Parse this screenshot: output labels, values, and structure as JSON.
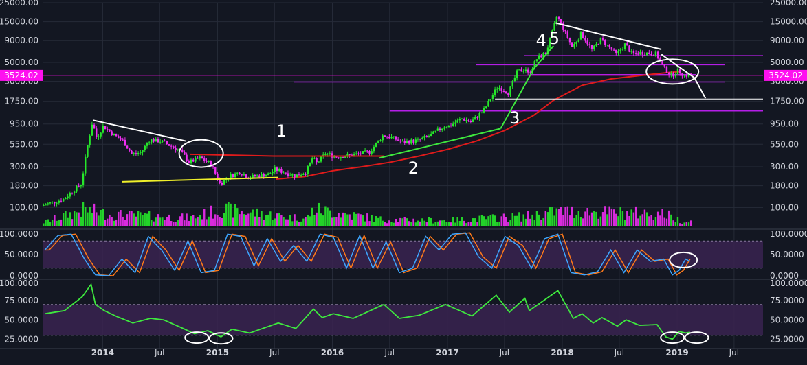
{
  "theme": {
    "background": "#131722",
    "grid": "#262b38",
    "axis_text": "#d1d4dc",
    "up_color": "#26e82a",
    "down_color": "#f02ef2",
    "price_label_bg": "#ff10f0",
    "osc_band": "#3a2350",
    "k_color": "#3ea6ff",
    "d_color": "#ff7a1a",
    "rsi_color": "#3ee83e",
    "ma_color": "#e01b1b",
    "support_color": "#b41ee6",
    "annotation_color": "#ffffff",
    "trend_green": "#3ee83e",
    "trend_yellow": "#f0f02a"
  },
  "chart_data": [
    {
      "type": "candlestick",
      "panel": "price",
      "scale": "log",
      "ylim": [
        60,
        25000
      ],
      "x_range": [
        "2013-06-24",
        "2019-10-01"
      ],
      "x_ticks": [
        {
          "date": "2014-01-01",
          "label": "2014"
        },
        {
          "date": "2014-07-01",
          "label": "Jul"
        },
        {
          "date": "2015-01-01",
          "label": "2015"
        },
        {
          "date": "2015-07-01",
          "label": "Jul"
        },
        {
          "date": "2016-01-01",
          "label": "2016"
        },
        {
          "date": "2016-07-01",
          "label": "Jul"
        },
        {
          "date": "2017-01-01",
          "label": "2017"
        },
        {
          "date": "2017-07-01",
          "label": "Jul"
        },
        {
          "date": "2018-01-01",
          "label": "2018"
        },
        {
          "date": "2018-07-01",
          "label": "Jul"
        },
        {
          "date": "2019-01-01",
          "label": "2019"
        },
        {
          "date": "2019-07-01",
          "label": "Jul"
        }
      ],
      "y_ticks": [
        {
          "value": 25000,
          "label": "25000.00"
        },
        {
          "value": 15000,
          "label": "15000.00"
        },
        {
          "value": 9000,
          "label": "9000.00"
        },
        {
          "value": 5000,
          "label": "5000.00"
        },
        {
          "value": 3000,
          "label": "3000.00"
        },
        {
          "value": 1750,
          "label": "1750.00"
        },
        {
          "value": 950,
          "label": "950.00"
        },
        {
          "value": 550,
          "label": "550.00"
        },
        {
          "value": 300,
          "label": "300.00"
        },
        {
          "value": 180,
          "label": "180.00"
        },
        {
          "value": 100,
          "label": "100.00"
        }
      ],
      "current_price": 3524.02,
      "current_price_label": "3524.02",
      "price_anchors": [
        [
          "2013-06-24",
          105
        ],
        [
          "2013-09-01",
          125
        ],
        [
          "2013-10-28",
          190
        ],
        [
          "2013-11-18",
          560
        ],
        [
          "2013-12-02",
          1000
        ],
        [
          "2013-12-16",
          650
        ],
        [
          "2014-01-06",
          900
        ],
        [
          "2014-02-10",
          700
        ],
        [
          "2014-03-10",
          600
        ],
        [
          "2014-04-07",
          420
        ],
        [
          "2014-05-05",
          440
        ],
        [
          "2014-06-02",
          620
        ],
        [
          "2014-07-07",
          600
        ],
        [
          "2014-08-11",
          520
        ],
        [
          "2014-09-08",
          460
        ],
        [
          "2014-10-06",
          340
        ],
        [
          "2014-11-10",
          380
        ],
        [
          "2014-12-15",
          320
        ],
        [
          "2015-01-12",
          190
        ],
        [
          "2015-02-09",
          230
        ],
        [
          "2015-03-16",
          260
        ],
        [
          "2015-04-13",
          225
        ],
        [
          "2015-05-11",
          235
        ],
        [
          "2015-06-15",
          245
        ],
        [
          "2015-07-06",
          280
        ],
        [
          "2015-08-03",
          260
        ],
        [
          "2015-09-07",
          235
        ],
        [
          "2015-10-12",
          260
        ],
        [
          "2015-11-02",
          380
        ],
        [
          "2015-11-16",
          330
        ],
        [
          "2015-12-14",
          430
        ],
        [
          "2016-01-18",
          390
        ],
        [
          "2016-03-07",
          410
        ],
        [
          "2016-05-02",
          450
        ],
        [
          "2016-06-13",
          700
        ],
        [
          "2016-07-11",
          660
        ],
        [
          "2016-08-15",
          580
        ],
        [
          "2016-10-03",
          610
        ],
        [
          "2016-11-14",
          710
        ],
        [
          "2016-12-26",
          900
        ],
        [
          "2017-01-09",
          900
        ],
        [
          "2017-02-20",
          1100
        ],
        [
          "2017-03-20",
          1000
        ],
        [
          "2017-05-01",
          1400
        ],
        [
          "2017-06-12",
          2600
        ],
        [
          "2017-07-17",
          2200
        ],
        [
          "2017-08-14",
          3900
        ],
        [
          "2017-09-11",
          4200
        ],
        [
          "2017-09-18",
          3600
        ],
        [
          "2017-10-16",
          5600
        ],
        [
          "2017-11-13",
          6500
        ],
        [
          "2017-12-04",
          11500
        ],
        [
          "2017-12-18",
          17500
        ],
        [
          "2018-01-01",
          14000
        ],
        [
          "2018-02-05",
          7500
        ],
        [
          "2018-03-05",
          11000
        ],
        [
          "2018-04-09",
          7000
        ],
        [
          "2018-05-07",
          9400
        ],
        [
          "2018-06-25",
          6200
        ],
        [
          "2018-07-23",
          8200
        ],
        [
          "2018-08-13",
          6300
        ],
        [
          "2018-09-17",
          6500
        ],
        [
          "2018-10-29",
          6300
        ],
        [
          "2018-11-19",
          4500
        ],
        [
          "2018-12-17",
          3500
        ],
        [
          "2019-01-07",
          4000
        ],
        [
          "2019-01-28",
          3500
        ],
        [
          "2019-02-11",
          3600
        ]
      ],
      "moving_average": {
        "color_key": "ma_color",
        "points": [
          [
            "2015-07-06",
            215
          ],
          [
            "2015-10-05",
            230
          ],
          [
            "2016-01-04",
            270
          ],
          [
            "2016-04-04",
            300
          ],
          [
            "2016-07-04",
            340
          ],
          [
            "2016-10-03",
            400
          ],
          [
            "2017-01-02",
            480
          ],
          [
            "2017-04-03",
            600
          ],
          [
            "2017-07-03",
            800
          ],
          [
            "2017-10-02",
            1200
          ],
          [
            "2017-12-04",
            1800
          ],
          [
            "2018-03-05",
            2700
          ],
          [
            "2018-06-04",
            3200
          ],
          [
            "2018-09-03",
            3500
          ],
          [
            "2018-12-03",
            3800
          ],
          [
            "2019-01-14",
            3900
          ]
        ]
      },
      "volume": {
        "seed": 7,
        "envelope": [
          [
            "2013-06-24",
            0.25
          ],
          [
            "2013-11-04",
            1.0
          ],
          [
            "2014-01-20",
            0.7
          ],
          [
            "2014-10-06",
            0.5
          ],
          [
            "2015-01-12",
            1.0
          ],
          [
            "2015-10-05",
            0.45
          ],
          [
            "2015-11-02",
            1.0
          ],
          [
            "2016-06-06",
            0.4
          ],
          [
            "2017-01-02",
            0.35
          ],
          [
            "2017-09-04",
            0.6
          ],
          [
            "2017-12-18",
            0.9
          ],
          [
            "2018-11-19",
            0.75
          ],
          [
            "2019-01-14",
            0.3
          ]
        ]
      }
    },
    {
      "type": "line",
      "panel": "stoch_rsi",
      "ylim": [
        0,
        100
      ],
      "y_ticks": [
        {
          "value": 100,
          "label": "100.0000"
        },
        {
          "value": 50,
          "label": "50.0000"
        },
        {
          "value": 0,
          "label": "0.0000"
        }
      ],
      "band": [
        20,
        80
      ],
      "series": [
        {
          "key": "k",
          "color_key": "k_color",
          "points": [
            [
              "2013-07-01",
              60
            ],
            [
              "2013-08-12",
              92
            ],
            [
              "2013-09-23",
              95
            ],
            [
              "2013-11-04",
              40
            ],
            [
              "2013-12-09",
              5
            ],
            [
              "2014-01-20",
              3
            ],
            [
              "2014-03-03",
              40
            ],
            [
              "2014-04-14",
              10
            ],
            [
              "2014-05-26",
              90
            ],
            [
              "2014-07-07",
              60
            ],
            [
              "2014-08-18",
              15
            ],
            [
              "2014-09-29",
              80
            ],
            [
              "2014-11-10",
              10
            ],
            [
              "2014-12-22",
              15
            ],
            [
              "2015-02-02",
              95
            ],
            [
              "2015-03-16",
              90
            ],
            [
              "2015-04-27",
              25
            ],
            [
              "2015-06-08",
              85
            ],
            [
              "2015-07-20",
              35
            ],
            [
              "2015-08-31",
              70
            ],
            [
              "2015-10-12",
              35
            ],
            [
              "2015-11-23",
              95
            ],
            [
              "2016-01-04",
              88
            ],
            [
              "2016-02-15",
              20
            ],
            [
              "2016-03-28",
              92
            ],
            [
              "2016-05-09",
              20
            ],
            [
              "2016-06-20",
              78
            ],
            [
              "2016-08-01",
              10
            ],
            [
              "2016-09-12",
              20
            ],
            [
              "2016-10-24",
              90
            ],
            [
              "2016-12-05",
              60
            ],
            [
              "2017-01-16",
              95
            ],
            [
              "2017-02-27",
              98
            ],
            [
              "2017-04-10",
              45
            ],
            [
              "2017-05-22",
              20
            ],
            [
              "2017-07-03",
              90
            ],
            [
              "2017-08-14",
              70
            ],
            [
              "2017-09-25",
              20
            ],
            [
              "2017-11-06",
              85
            ],
            [
              "2017-12-18",
              95
            ],
            [
              "2018-01-29",
              10
            ],
            [
              "2018-03-12",
              5
            ],
            [
              "2018-04-23",
              12
            ],
            [
              "2018-06-04",
              60
            ],
            [
              "2018-07-16",
              10
            ],
            [
              "2018-08-27",
              60
            ],
            [
              "2018-10-08",
              35
            ],
            [
              "2018-11-19",
              40
            ],
            [
              "2018-12-17",
              5
            ],
            [
              "2019-01-07",
              15
            ],
            [
              "2019-01-28",
              40
            ],
            [
              "2019-02-11",
              35
            ]
          ]
        },
        {
          "key": "d",
          "color_key": "d_color",
          "shift_days": 14
        }
      ]
    },
    {
      "type": "line",
      "panel": "rsi",
      "ylim": [
        20,
        100
      ],
      "y_ticks": [
        {
          "value": 100,
          "label": "100.0000"
        },
        {
          "value": 75,
          "label": "75.0000"
        },
        {
          "value": 50,
          "label": "50.0000"
        },
        {
          "value": 25,
          "label": "25.0000"
        }
      ],
      "band": [
        30,
        70
      ],
      "series": [
        {
          "key": "rsi",
          "color_key": "rsi_color",
          "points": [
            [
              "2013-07-01",
              58
            ],
            [
              "2013-09-02",
              62
            ],
            [
              "2013-10-28",
              80
            ],
            [
              "2013-11-25",
              96
            ],
            [
              "2013-12-09",
              70
            ],
            [
              "2014-01-06",
              62
            ],
            [
              "2014-02-17",
              54
            ],
            [
              "2014-04-07",
              46
            ],
            [
              "2014-06-02",
              52
            ],
            [
              "2014-07-14",
              50
            ],
            [
              "2014-09-08",
              40
            ],
            [
              "2014-10-20",
              32
            ],
            [
              "2014-12-01",
              36
            ],
            [
              "2015-01-12",
              28
            ],
            [
              "2015-02-16",
              38
            ],
            [
              "2015-04-13",
              33
            ],
            [
              "2015-06-01",
              40
            ],
            [
              "2015-07-13",
              46
            ],
            [
              "2015-09-07",
              39
            ],
            [
              "2015-11-02",
              64
            ],
            [
              "2015-11-30",
              53
            ],
            [
              "2016-01-04",
              58
            ],
            [
              "2016-03-07",
              52
            ],
            [
              "2016-06-13",
              70
            ],
            [
              "2016-08-01",
              52
            ],
            [
              "2016-10-03",
              56
            ],
            [
              "2016-12-26",
              70
            ],
            [
              "2017-03-20",
              55
            ],
            [
              "2017-06-05",
              82
            ],
            [
              "2017-07-17",
              60
            ],
            [
              "2017-09-04",
              78
            ],
            [
              "2017-09-18",
              62
            ],
            [
              "2017-12-18",
              88
            ],
            [
              "2018-02-05",
              52
            ],
            [
              "2018-03-05",
              58
            ],
            [
              "2018-04-09",
              46
            ],
            [
              "2018-05-07",
              53
            ],
            [
              "2018-06-25",
              42
            ],
            [
              "2018-07-23",
              50
            ],
            [
              "2018-09-03",
              43
            ],
            [
              "2018-10-29",
              44
            ],
            [
              "2018-11-26",
              28
            ],
            [
              "2018-12-17",
              25
            ],
            [
              "2019-01-07",
              35
            ],
            [
              "2019-01-28",
              33
            ],
            [
              "2019-02-11",
              34
            ]
          ]
        }
      ]
    }
  ],
  "annotations": {
    "labels": [
      "1",
      "2",
      "3",
      "4",
      "5"
    ],
    "support_levels": [
      6000,
      4700,
      3600,
      2950,
      1350
    ],
    "horizontal_white": 1850,
    "resistance_red": 400
  }
}
